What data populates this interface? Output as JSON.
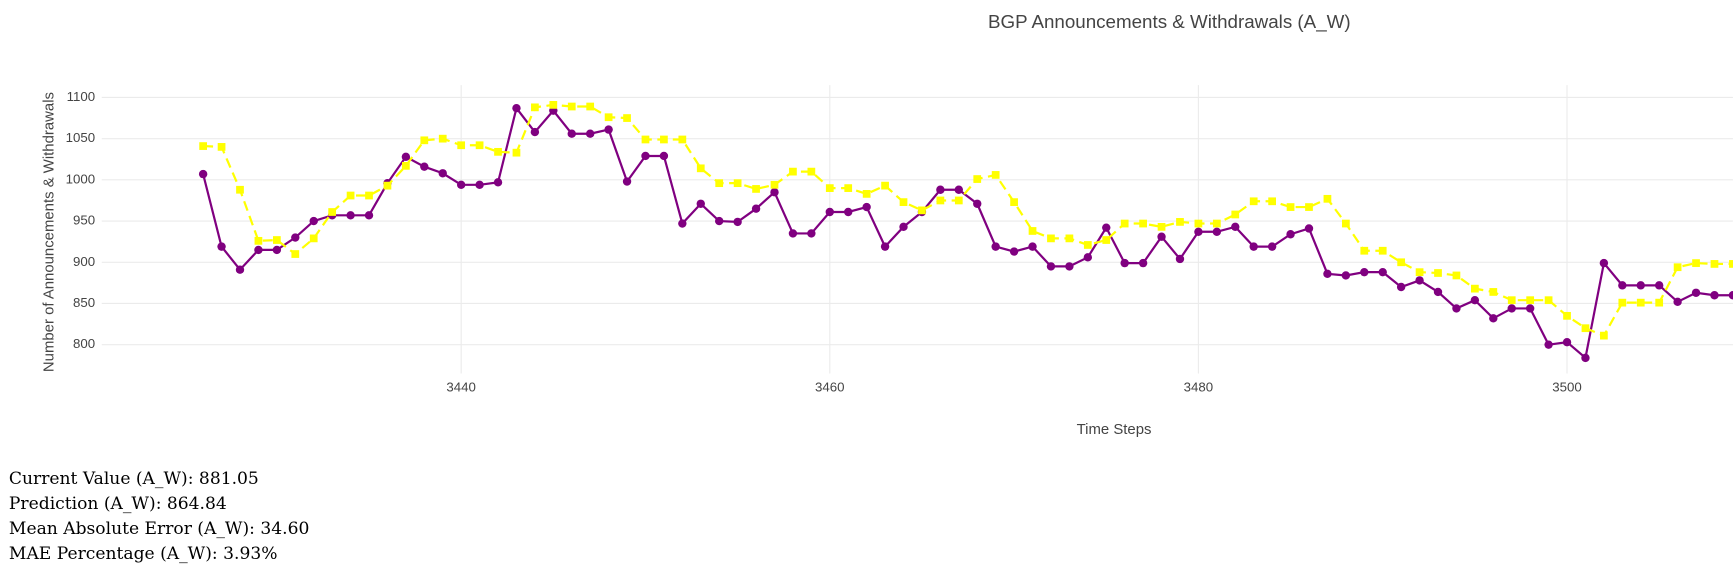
{
  "chart_data": {
    "type": "line",
    "title": "BGP Announcements & Withdrawals (A_W)",
    "x_label": "Time Steps",
    "y_label": "Number of Announcements & Withdrawals",
    "x": [
      3426,
      3427,
      3428,
      3429,
      3430,
      3431,
      3432,
      3433,
      3434,
      3435,
      3436,
      3437,
      3438,
      3439,
      3440,
      3441,
      3442,
      3443,
      3444,
      3445,
      3446,
      3447,
      3448,
      3449,
      3450,
      3451,
      3452,
      3453,
      3454,
      3455,
      3456,
      3457,
      3458,
      3459,
      3460,
      3461,
      3462,
      3463,
      3464,
      3465,
      3466,
      3467,
      3468,
      3469,
      3470,
      3471,
      3472,
      3473,
      3474,
      3475,
      3476,
      3477,
      3478,
      3479,
      3480,
      3481,
      3482,
      3483,
      3484,
      3485,
      3486,
      3487,
      3488,
      3489,
      3490,
      3491,
      3492,
      3493,
      3494,
      3495,
      3496,
      3497,
      3498,
      3499,
      3500,
      3501,
      3502,
      3503,
      3504,
      3505,
      3506,
      3507,
      3508,
      3509
    ],
    "series": [
      {
        "color": "#800080",
        "dash": "solid",
        "marker": "circle",
        "values": [
          1007,
          919,
          891,
          915,
          915,
          930,
          950,
          957,
          957,
          957,
          996,
          1028,
          1016,
          1008,
          994,
          994,
          997,
          1087,
          1058,
          1084,
          1056,
          1056,
          1061,
          998,
          1029,
          1029,
          947,
          971,
          950,
          949,
          965,
          985,
          935,
          935,
          961,
          961,
          967,
          919,
          943,
          961,
          988,
          988,
          971,
          919,
          913,
          919,
          895,
          895,
          906,
          942,
          899,
          899,
          931,
          904,
          937,
          937,
          943,
          919,
          919,
          934,
          941,
          886,
          884,
          888,
          888,
          870,
          878,
          864,
          844,
          854,
          832,
          844,
          844,
          800,
          803,
          784,
          899,
          872,
          872,
          872,
          852,
          863,
          860,
          860
        ]
      },
      {
        "color": "#ffff00",
        "dash": "dash",
        "marker": "square",
        "values": [
          1041,
          1040,
          988,
          926,
          927,
          910,
          929,
          961,
          981,
          981,
          993,
          1017,
          1048,
          1050,
          1042,
          1042,
          1034,
          1033,
          1088,
          1091,
          1089,
          1089,
          1076,
          1075,
          1049,
          1049,
          1049,
          1014,
          996,
          996,
          989,
          994,
          1010,
          1010,
          990,
          990,
          983,
          993,
          973,
          963,
          975,
          975,
          1001,
          1006,
          973,
          938,
          929,
          929,
          921,
          927,
          947,
          947,
          943,
          949,
          947,
          947,
          958,
          974,
          974,
          967,
          967,
          977,
          947,
          914,
          914,
          900,
          888,
          887,
          884,
          868,
          864,
          854,
          854,
          854,
          835,
          820,
          811,
          851,
          851,
          851,
          894,
          899,
          898,
          898
        ]
      }
    ],
    "xlim": [
      3420.5,
      3509
    ],
    "xticks": [
      3440,
      3460,
      3480,
      3500
    ],
    "ylim": [
      765,
      1115
    ],
    "yticks": [
      800,
      850,
      900,
      950,
      1000,
      1050,
      1100
    ],
    "grid": true
  },
  "stats": [
    "Current Value (A_W): 881.05",
    "Prediction (A_W): 864.84",
    "Mean Absolute Error (A_W): 34.60",
    "MAE Percentage (A_W): 3.93%"
  ]
}
